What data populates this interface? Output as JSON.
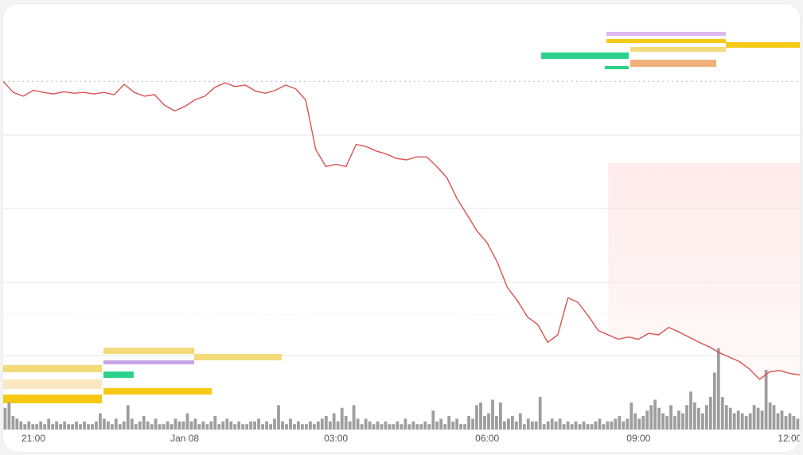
{
  "chart_data": {
    "type": "line",
    "title": "",
    "xlabel": "",
    "ylabel": "",
    "x_ticks": [
      "21:00",
      "Jan 08",
      "03:00",
      "06:00",
      "09:00",
      "12:00"
    ],
    "x_range_hours": [
      -3.6,
      12.2
    ],
    "y_range_relative": [
      0.96,
      1.004
    ],
    "grid": {
      "horizontal": true,
      "vertical": false
    },
    "reference_level": 1.0,
    "series": [
      {
        "color": "#d9534f",
        "x_hours": [
          -3.6,
          -3.4,
          -3.2,
          -3.0,
          -2.8,
          -2.6,
          -2.4,
          -2.2,
          -2.0,
          -1.8,
          -1.6,
          -1.4,
          -1.2,
          -1.0,
          -0.8,
          -0.6,
          -0.4,
          -0.2,
          0.0,
          0.2,
          0.4,
          0.6,
          0.8,
          1.0,
          1.2,
          1.4,
          1.6,
          1.8,
          2.0,
          2.2,
          2.4,
          2.6,
          2.8,
          3.0,
          3.2,
          3.4,
          3.6,
          3.8,
          4.0,
          4.2,
          4.4,
          4.6,
          4.8,
          5.0,
          5.2,
          5.4,
          5.6,
          5.8,
          6.0,
          6.2,
          6.4,
          6.6,
          6.8,
          7.0,
          7.2,
          7.4,
          7.6,
          7.8,
          8.0,
          8.2,
          8.4,
          8.6,
          8.8,
          9.0,
          9.2,
          9.4,
          9.6,
          9.8,
          10.0,
          10.2,
          10.4,
          10.6,
          10.8,
          11.0,
          11.2,
          11.4,
          11.6,
          11.8,
          12.0,
          12.2
        ],
        "values": [
          1.0,
          0.9985,
          0.998,
          0.9988,
          0.9985,
          0.9983,
          0.9986,
          0.9984,
          0.9985,
          0.9983,
          0.9985,
          0.9982,
          0.9996,
          0.9985,
          0.998,
          0.9982,
          0.9968,
          0.996,
          0.9966,
          0.9975,
          0.998,
          0.9992,
          0.9998,
          0.9993,
          0.9995,
          0.9987,
          0.9984,
          0.9988,
          0.9995,
          0.999,
          0.9975,
          0.9908,
          0.9885,
          0.9888,
          0.9885,
          0.9915,
          0.9912,
          0.9906,
          0.9902,
          0.9896,
          0.9894,
          0.9898,
          0.9898,
          0.9885,
          0.987,
          0.9842,
          0.982,
          0.9798,
          0.9782,
          0.9756,
          0.9722,
          0.9704,
          0.9682,
          0.9672,
          0.9648,
          0.9658,
          0.9708,
          0.9702,
          0.9684,
          0.9664,
          0.9658,
          0.9652,
          0.9655,
          0.9652,
          0.966,
          0.9658,
          0.9668,
          0.9662,
          0.9655,
          0.9648,
          0.9642,
          0.9634,
          0.9628,
          0.9622,
          0.9612,
          0.9598,
          0.9608,
          0.961,
          0.9606,
          0.9604
        ]
      }
    ],
    "volume": [
      8,
      10,
      5,
      4,
      3,
      2,
      3,
      2,
      2,
      3,
      2,
      4,
      2,
      3,
      2,
      3,
      2,
      2,
      3,
      2,
      3,
      2,
      2,
      3,
      6,
      4,
      3,
      2,
      4,
      2,
      3,
      9,
      4,
      2,
      3,
      5,
      3,
      2,
      4,
      2,
      2,
      3,
      2,
      4,
      3,
      3,
      6,
      3,
      4,
      2,
      3,
      2,
      3,
      5,
      2,
      3,
      4,
      3,
      2,
      3,
      2,
      2,
      3,
      3,
      4,
      2,
      3,
      2,
      4,
      9,
      3,
      2,
      4,
      2,
      3,
      2,
      2,
      3,
      2,
      3,
      4,
      5,
      3,
      6,
      3,
      8,
      5,
      3,
      9,
      4,
      2,
      4,
      3,
      2,
      3,
      2,
      3,
      2,
      2,
      3,
      2,
      4,
      2,
      3,
      2,
      2,
      3,
      2,
      7,
      3,
      4,
      2,
      5,
      3,
      4,
      2,
      2,
      5,
      4,
      9,
      10,
      5,
      6,
      11,
      5,
      10,
      3,
      4,
      5,
      3,
      6,
      2,
      4,
      3,
      3,
      12,
      2,
      3,
      4,
      3,
      4,
      2,
      3,
      2,
      3,
      2,
      3,
      2,
      2,
      3,
      4,
      2,
      3,
      3,
      4,
      5,
      3,
      4,
      10,
      6,
      4,
      5,
      7,
      9,
      11,
      8,
      6,
      5,
      9,
      5,
      7,
      6,
      9,
      14,
      10,
      8,
      6,
      9,
      12,
      21,
      30,
      12,
      9,
      8,
      6,
      7,
      6,
      5,
      6,
      9,
      8,
      7,
      22,
      10,
      9,
      6,
      7,
      5,
      6,
      5,
      4
    ]
  }
}
